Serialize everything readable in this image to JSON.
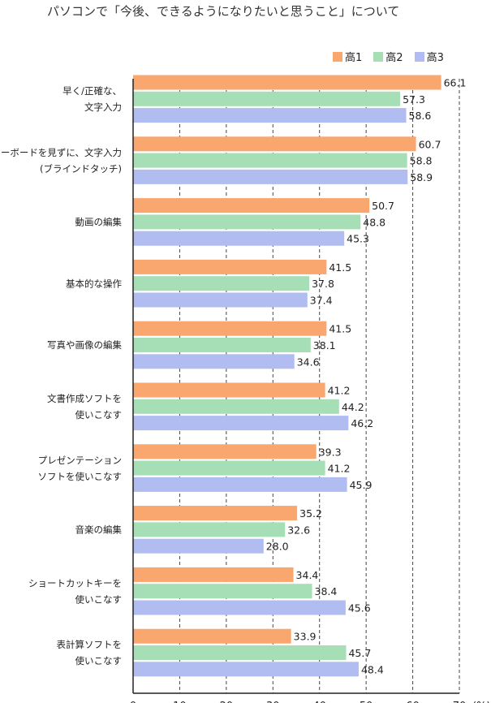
{
  "chart_data": {
    "type": "bar",
    "orientation": "horizontal",
    "title": "パソコンで「今後、できるようになりたいと思うこと」について",
    "categories": [
      [
        "早く/正確な、",
        "文字入力"
      ],
      [
        "キーボードを見ずに、文字入力",
        "(ブラインドタッチ)"
      ],
      [
        "動画の編集"
      ],
      [
        "基本的な操作"
      ],
      [
        "写真や画像の編集"
      ],
      [
        "文書作成ソフトを",
        "使いこなす"
      ],
      [
        "プレゼンテーション",
        "ソフトを使いこなす"
      ],
      [
        "音楽の編集"
      ],
      [
        "ショートカットキーを",
        "使いこなす"
      ],
      [
        "表計算ソフトを",
        "使いこなす"
      ]
    ],
    "series": [
      {
        "name": "高1",
        "color": "#f9a66f",
        "values": [
          66.1,
          60.7,
          50.7,
          41.5,
          41.5,
          41.2,
          39.3,
          35.2,
          34.4,
          33.9
        ]
      },
      {
        "name": "高2",
        "color": "#a6dfb6",
        "values": [
          57.3,
          58.8,
          48.8,
          37.8,
          38.1,
          44.2,
          41.2,
          32.6,
          38.4,
          45.7
        ]
      },
      {
        "name": "高3",
        "color": "#b1bdf1",
        "values": [
          58.6,
          58.9,
          45.3,
          37.4,
          34.6,
          46.2,
          45.9,
          28.0,
          45.6,
          48.4
        ]
      }
    ],
    "xlim": [
      0,
      70
    ],
    "xticks": [
      "0",
      "10",
      "20",
      "30",
      "40",
      "50",
      "60",
      "70"
    ],
    "xunit": "(%)",
    "grid": "vertical dashed",
    "legend": "top-right"
  }
}
